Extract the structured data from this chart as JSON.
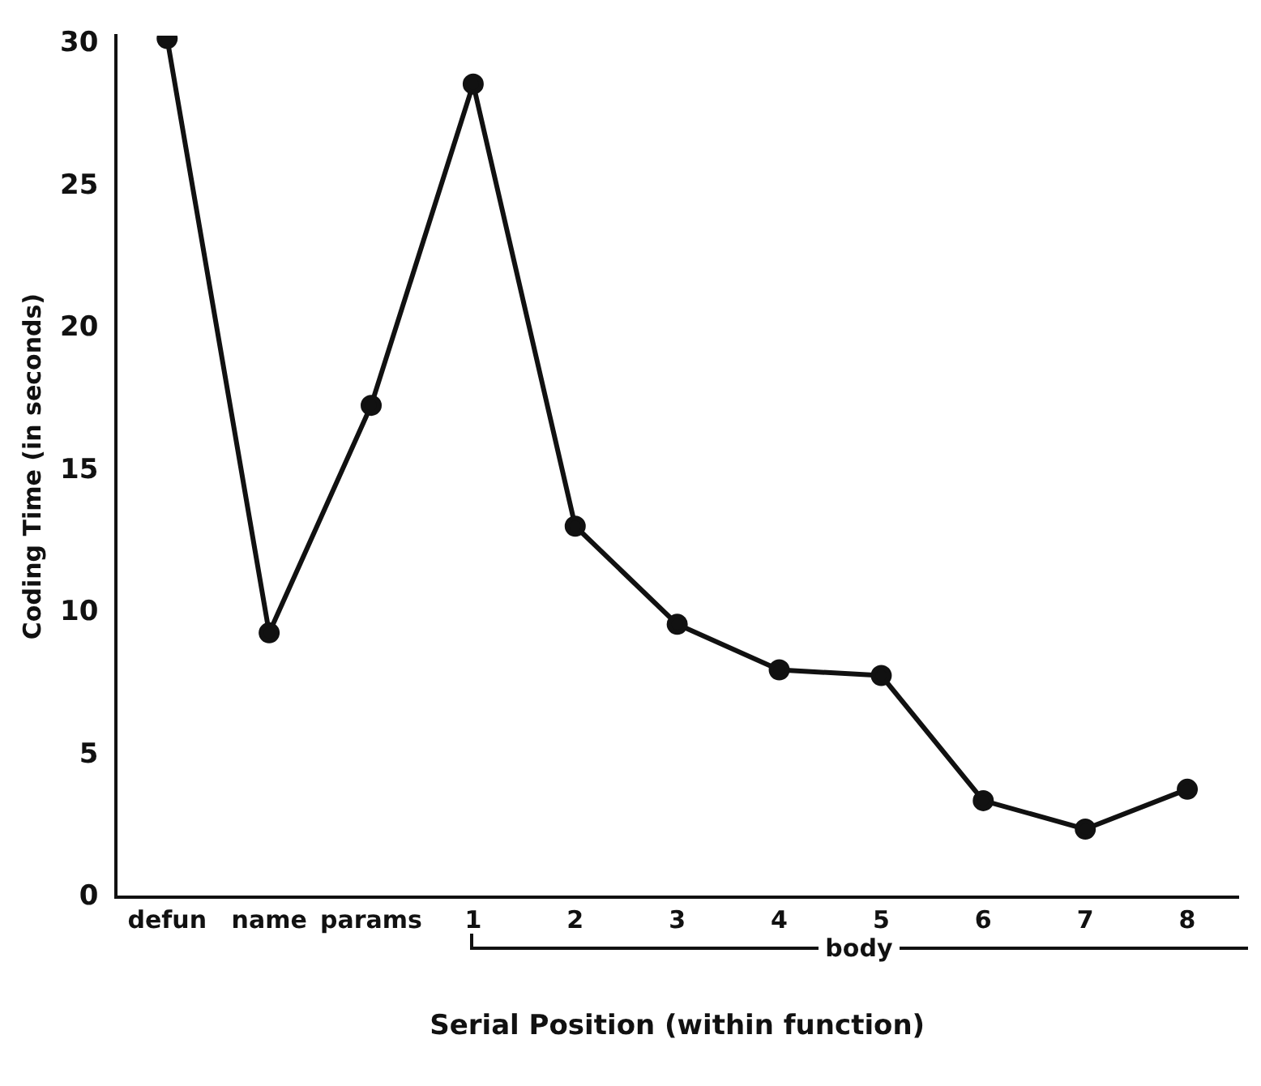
{
  "chart_data": {
    "type": "line",
    "xlabel": "Serial Position (within function)",
    "ylabel": "Coding Time (in seconds)",
    "categories": [
      "defun",
      "name",
      "params",
      "1",
      "2",
      "3",
      "4",
      "5",
      "6",
      "7",
      "8"
    ],
    "series": [
      {
        "color": "#111111",
        "values": [
          30.2,
          9.3,
          17.3,
          28.6,
          13.05,
          9.6,
          8.0,
          7.8,
          3.4,
          2.4,
          3.8
        ]
      }
    ],
    "ylim": [
      0,
      30.3
    ],
    "yticks": [
      0,
      5,
      10,
      15,
      20,
      25,
      30
    ],
    "grid": false,
    "legend": false,
    "marker": "circle",
    "line_style": "solid",
    "annotations": [
      "body"
    ]
  }
}
